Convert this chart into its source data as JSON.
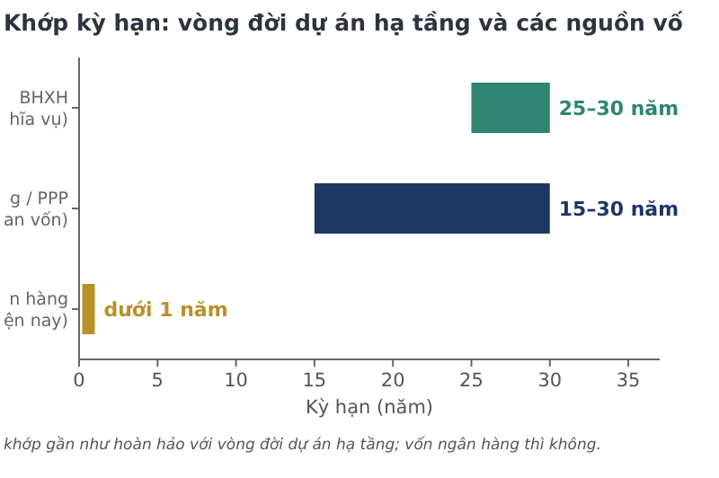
{
  "chart_data": {
    "type": "bar",
    "orientation": "horizontal",
    "title": "Khớp kỳ hạn: vòng đời dự án hạ tầng và các nguồn vố",
    "xlabel": "Kỳ hạn (năm)",
    "categories": [
      "BHXH\nhĩa vụ)",
      "g / PPP\nan vốn)",
      "n hàng\nện nay)"
    ],
    "base": [
      25,
      15,
      0.2
    ],
    "values": [
      5,
      15,
      0.8
    ],
    "colors": [
      "#2e8572",
      "#1f3763",
      "#b8902a"
    ],
    "value_labels": [
      "25–30 năm",
      "15–30 năm",
      "dưới 1 năm"
    ],
    "xlim": [
      0,
      37
    ],
    "xticks": [
      0,
      5,
      10,
      15,
      20,
      25,
      30,
      35
    ],
    "annotations": [
      "khớp gần như hoàn hảo với vòng đời dự án hạ tầng; vốn ngân hàng thì không."
    ]
  }
}
